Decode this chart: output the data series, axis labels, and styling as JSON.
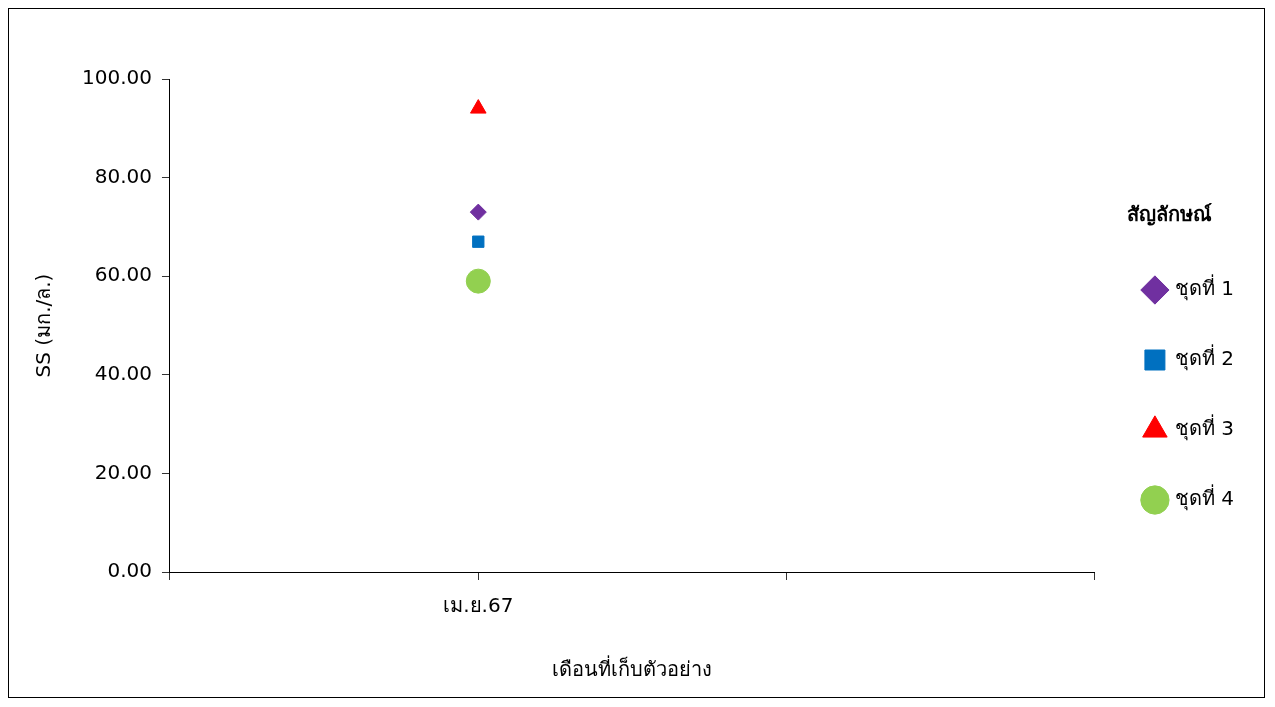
{
  "chart_data": {
    "type": "scatter",
    "xlabel": "เดือนที่เก็บตัวอย่าง",
    "ylabel": "SS (มก./ล.)",
    "legend_title": "สัญลักษณ์",
    "legend": "right",
    "grid": false,
    "categories": [
      null,
      "เม.ย.67",
      null,
      null
    ],
    "ylim": [
      0,
      100
    ],
    "yticks": [
      {
        "value": 0,
        "label": "0.00"
      },
      {
        "value": 20,
        "label": "20.00"
      },
      {
        "value": 40,
        "label": "40.00"
      },
      {
        "value": 60,
        "label": "60.00"
      },
      {
        "value": 80,
        "label": "80.00"
      },
      {
        "value": 100,
        "label": "100.00"
      }
    ],
    "series": [
      {
        "name": "ชุดที่ 1",
        "color": "#7030a0",
        "marker": "diamond",
        "values": [
          null,
          73,
          null,
          null
        ]
      },
      {
        "name": "ชุดที่ 2",
        "color": "#0070c0",
        "marker": "square",
        "values": [
          null,
          67,
          null,
          null
        ]
      },
      {
        "name": "ชุดที่ 3",
        "color": "#ff0000",
        "marker": "triangle",
        "values": [
          null,
          94,
          null,
          null
        ]
      },
      {
        "name": "ชุดที่ 4",
        "color": "#92d050",
        "marker": "circle",
        "values": [
          null,
          59,
          null,
          null
        ]
      }
    ]
  }
}
